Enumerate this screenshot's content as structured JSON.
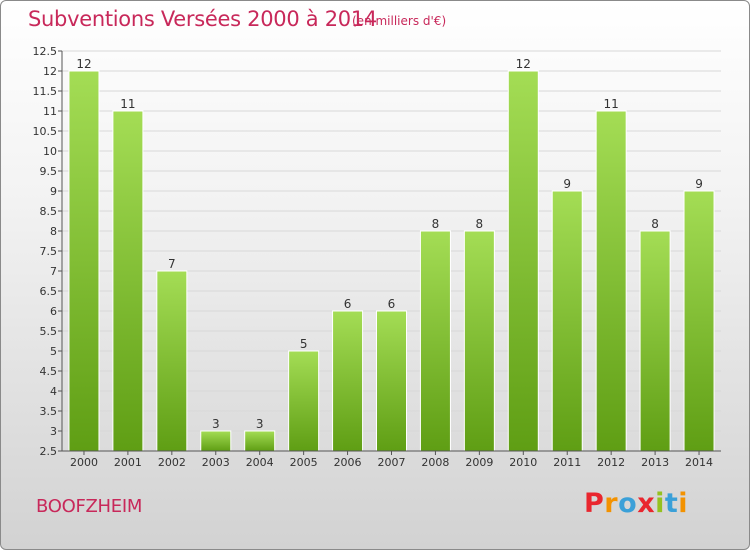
{
  "header": {
    "title": "Subventions Versées 2000 à 2014",
    "unit": "(en milliers d'€)"
  },
  "footer": {
    "commune": "BOOFZHEIM",
    "logo_letters": [
      "P",
      "r",
      "o",
      "x",
      "i",
      "t",
      "i"
    ],
    "logo_colors": [
      "#e9262e",
      "#f39200",
      "#3aa0d8",
      "#e9262e",
      "#95c11f",
      "#3aa0d8",
      "#f39200"
    ]
  },
  "colors": {
    "bar_light": "#a4dd55",
    "bar_dark": "#5f9e14",
    "axis": "#555555",
    "grid": "#d8d8d8",
    "text": "#333333"
  },
  "chart_data": {
    "type": "bar",
    "categories": [
      "2000",
      "2001",
      "2002",
      "2003",
      "2004",
      "2005",
      "2006",
      "2007",
      "2008",
      "2009",
      "2010",
      "2011",
      "2012",
      "2013",
      "2014"
    ],
    "values": [
      12,
      11,
      7,
      3,
      3,
      5,
      6,
      6,
      8,
      8,
      12,
      9,
      11,
      8,
      9
    ],
    "ylim": [
      2.5,
      12.5
    ],
    "ytick_step": 0.5,
    "ytick_labels": [
      "2.5",
      "3",
      "3.5",
      "4",
      "4.5",
      "5",
      "5.5",
      "6",
      "6.5",
      "7",
      "7.5",
      "8",
      "8.5",
      "9",
      "9.5",
      "10",
      "10.5",
      "11",
      "11.5",
      "12",
      "12.5"
    ],
    "grid": true,
    "xlabel": "",
    "ylabel": ""
  }
}
